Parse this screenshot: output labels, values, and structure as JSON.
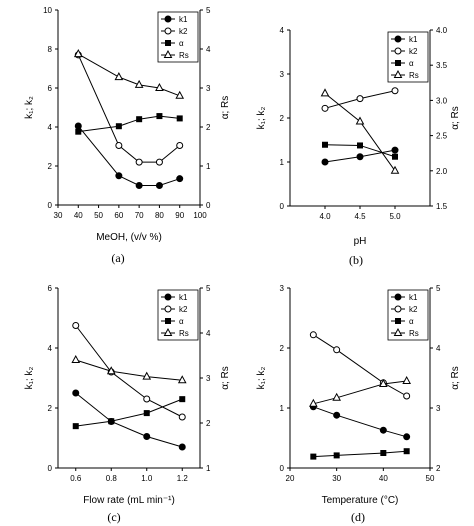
{
  "chart_data": [
    {
      "type": "line",
      "panel_label": "(a)",
      "xlabel": "MeOH, (v/v %)",
      "ylabel_left": "k₁; k₂",
      "ylabel_right": "α; Rs",
      "xlim": [
        30,
        100
      ],
      "ylim_left": [
        0,
        10
      ],
      "ylim_right": [
        0,
        5
      ],
      "xticks": [
        30,
        40,
        50,
        60,
        70,
        80,
        90,
        100
      ],
      "yticks_left": [
        0,
        2,
        4,
        6,
        8,
        10
      ],
      "yticks_right": [
        0,
        1,
        2,
        3,
        4,
        5
      ],
      "legend": [
        "k1",
        "k2",
        "α",
        "Rs"
      ],
      "series": [
        {
          "name": "k1",
          "axis": "left",
          "marker": "filled-circle",
          "x": [
            40,
            60,
            70,
            80,
            90
          ],
          "y": [
            4.05,
            1.5,
            1.0,
            1.0,
            1.35
          ]
        },
        {
          "name": "k2",
          "axis": "left",
          "marker": "open-circle",
          "x": [
            40,
            60,
            70,
            80,
            90
          ],
          "y": [
            7.7,
            3.05,
            2.2,
            2.2,
            3.05
          ]
        },
        {
          "name": "α",
          "axis": "right",
          "marker": "filled-square",
          "x": [
            40,
            60,
            70,
            80,
            90
          ],
          "y": [
            1.88,
            2.02,
            2.2,
            2.28,
            2.22
          ]
        },
        {
          "name": "Rs",
          "axis": "right",
          "marker": "open-triangle",
          "x": [
            40,
            60,
            70,
            80,
            90
          ],
          "y": [
            3.87,
            3.28,
            3.08,
            3.0,
            2.8
          ]
        }
      ]
    },
    {
      "type": "line",
      "panel_label": "(b)",
      "xlabel": "pH",
      "ylabel_left": "k₁; k₂",
      "ylabel_right": "α; Rs",
      "xlim": [
        3.5,
        5.5
      ],
      "ylim_left": [
        0,
        4
      ],
      "ylim_right": [
        1.5,
        4
      ],
      "xticks": [
        4.0,
        4.5,
        5.0
      ],
      "xtick_labels": [
        "4.0",
        "4.5",
        "5.0"
      ],
      "yticks_left": [
        0,
        1,
        2,
        3,
        4
      ],
      "yticks_right": [
        1.5,
        2.0,
        2.5,
        3.0,
        3.5,
        4.0
      ],
      "yticks_right_labels": [
        "1.5",
        "2.0",
        "2.5",
        "3.0",
        "3.5",
        "4.0"
      ],
      "legend": [
        "k1",
        "k2",
        "α",
        "Rs"
      ],
      "series": [
        {
          "name": "k1",
          "axis": "left",
          "marker": "filled-circle",
          "x": [
            4.0,
            4.5,
            5.0
          ],
          "y": [
            1.0,
            1.12,
            1.27
          ]
        },
        {
          "name": "k2",
          "axis": "left",
          "marker": "open-circle",
          "x": [
            4.0,
            4.5,
            5.0
          ],
          "y": [
            2.22,
            2.44,
            2.62
          ]
        },
        {
          "name": "α",
          "axis": "right",
          "marker": "filled-square",
          "x": [
            4.0,
            4.5,
            5.0
          ],
          "y": [
            2.37,
            2.36,
            2.2
          ]
        },
        {
          "name": "Rs",
          "axis": "right",
          "marker": "open-triangle",
          "x": [
            4.0,
            4.5,
            5.0
          ],
          "y": [
            3.1,
            2.7,
            2.0
          ]
        }
      ]
    },
    {
      "type": "line",
      "panel_label": "(c)",
      "xlabel": "Flow rate (mL min⁻¹)",
      "ylabel_left": "k₁; k₂",
      "ylabel_right": "α; Rs",
      "xlim": [
        0.5,
        1.3
      ],
      "ylim_left": [
        0,
        6
      ],
      "ylim_right": [
        1,
        5
      ],
      "xticks": [
        0.6,
        0.8,
        1.0,
        1.2
      ],
      "xtick_labels": [
        "0.6",
        "0.8",
        "1.0",
        "1.2"
      ],
      "yticks_left": [
        0,
        2,
        4,
        6
      ],
      "yticks_right": [
        1,
        2,
        3,
        4,
        5
      ],
      "legend": [
        "k1",
        "k2",
        "α",
        "Rs"
      ],
      "series": [
        {
          "name": "k1",
          "axis": "left",
          "marker": "filled-circle",
          "x": [
            0.6,
            0.8,
            1.0,
            1.2
          ],
          "y": [
            2.5,
            1.55,
            1.05,
            0.7
          ]
        },
        {
          "name": "k2",
          "axis": "left",
          "marker": "open-circle",
          "x": [
            0.6,
            0.8,
            1.0,
            1.2
          ],
          "y": [
            4.75,
            3.2,
            2.3,
            1.7
          ]
        },
        {
          "name": "α",
          "axis": "right",
          "marker": "filled-square",
          "x": [
            0.6,
            0.8,
            1.0,
            1.2
          ],
          "y": [
            1.93,
            2.04,
            2.22,
            2.53
          ]
        },
        {
          "name": "Rs",
          "axis": "right",
          "marker": "open-triangle",
          "x": [
            0.6,
            0.8,
            1.0,
            1.2
          ],
          "y": [
            3.4,
            3.15,
            3.03,
            2.95
          ]
        }
      ]
    },
    {
      "type": "line",
      "panel_label": "(d)",
      "xlabel": "Temperature (°C)",
      "ylabel_left": "k₁; k₂",
      "ylabel_right": "α; Rs",
      "xlim": [
        20,
        50
      ],
      "ylim_left": [
        0,
        3
      ],
      "ylim_right": [
        2,
        5
      ],
      "xticks": [
        20,
        30,
        40,
        50
      ],
      "yticks_left": [
        0,
        1,
        2,
        3
      ],
      "yticks_right": [
        2,
        3,
        4,
        5
      ],
      "legend": [
        "k1",
        "k2",
        "α",
        "Rs"
      ],
      "series": [
        {
          "name": "k1",
          "axis": "left",
          "marker": "filled-circle",
          "x": [
            25,
            30,
            40,
            45
          ],
          "y": [
            1.02,
            0.88,
            0.63,
            0.52
          ]
        },
        {
          "name": "k2",
          "axis": "left",
          "marker": "open-circle",
          "x": [
            25,
            30,
            40,
            45
          ],
          "y": [
            2.22,
            1.97,
            1.42,
            1.2
          ]
        },
        {
          "name": "α",
          "axis": "right",
          "marker": "filled-square",
          "x": [
            25,
            30,
            40,
            45
          ],
          "y": [
            2.19,
            2.21,
            2.25,
            2.28
          ]
        },
        {
          "name": "Rs",
          "axis": "right",
          "marker": "open-triangle",
          "x": [
            25,
            30,
            40,
            45
          ],
          "y": [
            3.07,
            3.17,
            3.4,
            3.45
          ]
        }
      ]
    }
  ]
}
